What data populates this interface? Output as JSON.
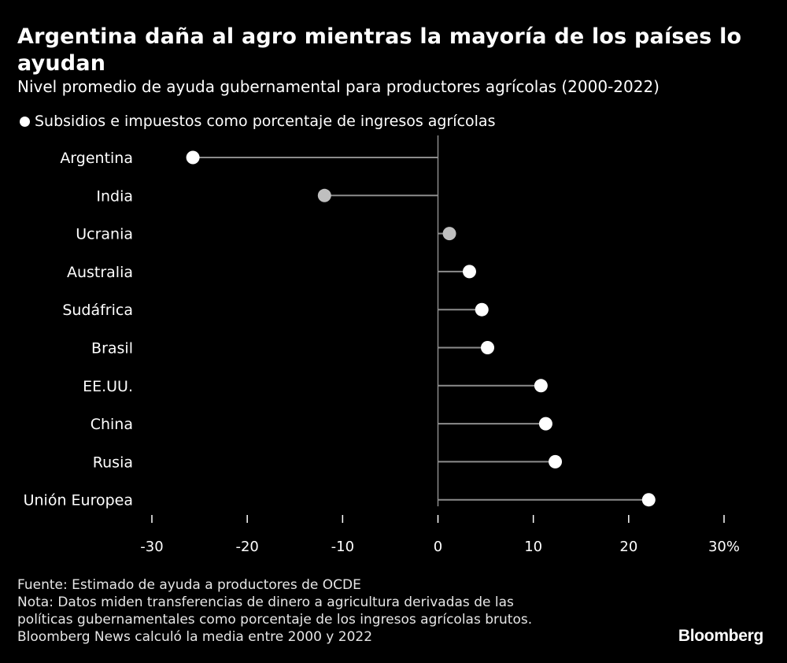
{
  "title": "Argentina daña al agro mientras la mayoría de los países lo ayudan",
  "subtitle": "Nivel promedio de ayuda gubernamental para productores agrícolas (2000-2022)",
  "chart_data": {
    "type": "dot",
    "title": "Argentina daña al agro mientras la mayoría de los países lo ayudan",
    "subtitle": "Nivel promedio de ayuda gubernamental para productores agrícolas (2000-2022)",
    "legend": [
      "Subsidios e impuestos como porcentaje de ingresos agrícolas"
    ],
    "categories": [
      "Argentina",
      "India",
      "Ucrania",
      "Australia",
      "Sudáfrica",
      "Brasil",
      "EE.UU.",
      "China",
      "Rusia",
      "Unión Europea"
    ],
    "series": [
      {
        "name": "Subsidios e impuestos como porcentaje de ingresos agrícolas",
        "values": [
          -25.7,
          -11.9,
          1.2,
          3.3,
          4.6,
          5.2,
          10.8,
          11.3,
          12.3,
          22.1
        ]
      }
    ],
    "point_colors": [
      "#ffffff",
      "#bfbfbf",
      "#bfbfbf",
      "#ffffff",
      "#ffffff",
      "#ffffff",
      "#ffffff",
      "#ffffff",
      "#ffffff",
      "#ffffff"
    ],
    "xlim": [
      -30,
      30
    ],
    "xticks": [
      -30,
      -20,
      -10,
      0,
      10,
      20,
      30
    ],
    "xtick_labels": [
      "-30",
      "-20",
      "-10",
      "0",
      "10",
      "20",
      "30%"
    ],
    "grid": false,
    "legend_position": "top-left"
  },
  "footer": {
    "source": "Fuente: Estimado de ayuda a productores de OCDE",
    "note_1": "Nota: Datos miden transferencias de dinero a agricultura derivadas de las",
    "note_2": "políticas gubernamentales como porcentaje de los ingresos agrícolas brutos.",
    "note_3": "Bloomberg News calculó la media entre 2000 y 2022"
  },
  "brand": "Bloomberg",
  "colors": {
    "background": "#000000",
    "text": "#ffffff",
    "axis": "#8c8c8c",
    "point_default": "#ffffff",
    "point_muted": "#bfbfbf"
  }
}
